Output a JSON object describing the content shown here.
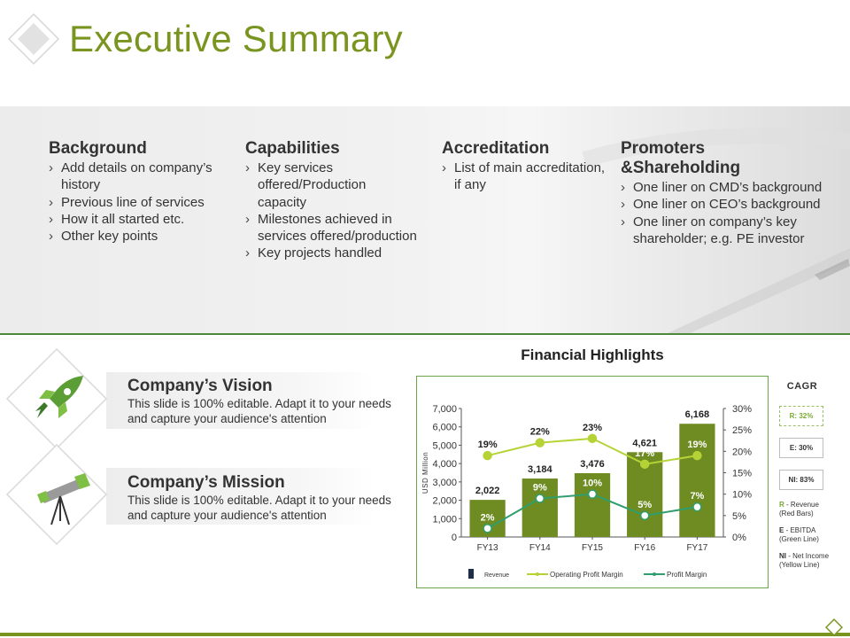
{
  "title": "Executive Summary",
  "columns": {
    "background": {
      "heading": "Background",
      "items": [
        "Add details on company’s history",
        "Previous line of services",
        "How it all started etc.",
        "Other key points"
      ]
    },
    "capabilities": {
      "heading": "Capabilities",
      "items": [
        "Key services offered/Production capacity",
        "Milestones achieved in services offered/production",
        "Key projects handled"
      ]
    },
    "accreditation": {
      "heading": "Accreditation",
      "items": [
        "List of main accreditation, if any"
      ]
    },
    "promoters": {
      "heading": "Promoters &Shareholding",
      "items": [
        "One liner on CMD’s background",
        "One liner on CEO’s background",
        "One liner on company’s key shareholder; e.g. PE investor"
      ]
    }
  },
  "vision": {
    "title": "Company’s Vision",
    "text": "This slide is 100% editable. Adapt it to your needs and capture your audience's attention"
  },
  "mission": {
    "title": "Company’s Mission",
    "text": "This slide is 100% editable. Adapt it to your needs and capture your audience's attention"
  },
  "financial": {
    "title": "Financial Highlights"
  },
  "chart_data": {
    "type": "bar",
    "title": "",
    "categories": [
      "FY13",
      "FY14",
      "FY15",
      "FY16",
      "FY17"
    ],
    "ylabel": "USD Million",
    "ylim": [
      0,
      7000
    ],
    "y_ticks": [
      "7,000",
      "6,000",
      "5,000",
      "4,000",
      "3,000",
      "2,000",
      "1,000",
      "0"
    ],
    "y2lim": [
      0,
      30
    ],
    "y2_ticks": [
      "30%",
      "25%",
      "20%",
      "15%",
      "10%",
      "5%",
      "0%"
    ],
    "series": [
      {
        "name": "Revenue",
        "kind": "bar",
        "values": [
          2022,
          3184,
          3476,
          4621,
          6168
        ],
        "labels": [
          "2,022",
          "3,184",
          "3,476",
          "4,621",
          "6,168"
        ],
        "color": "#6e8c22"
      },
      {
        "name": "Operating Profit Margin",
        "kind": "line",
        "axis": "right",
        "values": [
          19,
          22,
          23,
          17,
          19
        ],
        "labels": [
          "19%",
          "22%",
          "23%",
          "17%",
          "19%"
        ],
        "color": "#b5d334"
      },
      {
        "name": "Profit Margin",
        "kind": "line",
        "axis": "right",
        "values": [
          2,
          9,
          10,
          5,
          7
        ],
        "labels": [
          "2%",
          "9%",
          "10%",
          "5%",
          "7%"
        ],
        "color": "#2f9e6c"
      }
    ],
    "legend_position": "bottom",
    "grid": false
  },
  "cagr": {
    "title": "CAGR",
    "r": "R: 32%",
    "e": "E: 30%",
    "ni": "NI: 83%",
    "notes": [
      {
        "key": "R",
        "text": " - Revenue (Red Bars)"
      },
      {
        "key": "E",
        "text": " - EBITDA (Green Line)"
      },
      {
        "key": "NI",
        "text": " - Net Income (Yellow Line)"
      }
    ]
  },
  "colors": {
    "accent": "#7a951f",
    "band_line": "#4a8a38",
    "bar": "#6e8c22",
    "op_margin": "#b5d334",
    "profit_margin": "#2f9e6c"
  }
}
